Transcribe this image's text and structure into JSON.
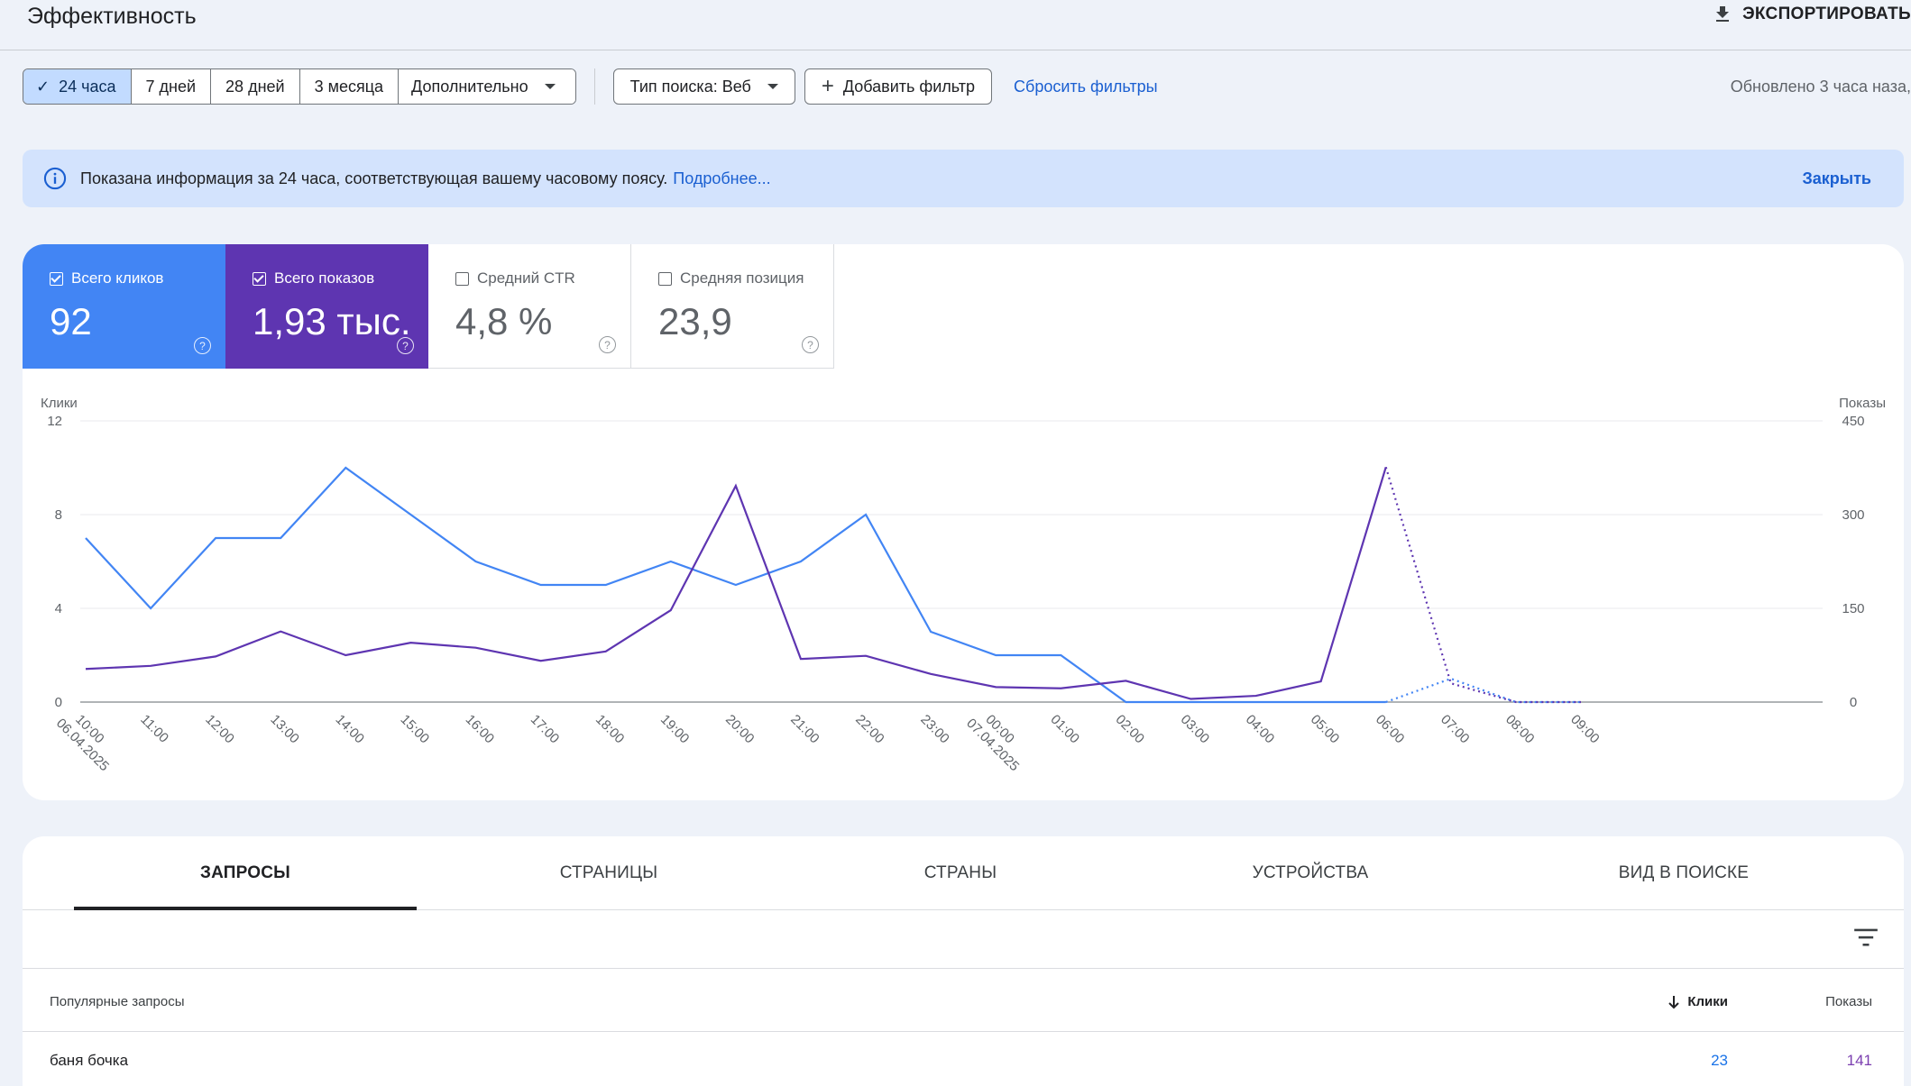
{
  "header": {
    "title": "Эффективность",
    "export_label": "ЭКСПОРТИРОВАТЬ"
  },
  "filters": {
    "ranges": [
      {
        "label": "24 часа",
        "active": true
      },
      {
        "label": "7 дней",
        "active": false
      },
      {
        "label": "28 дней",
        "active": false
      },
      {
        "label": "3 месяца",
        "active": false
      },
      {
        "label": "Дополнительно",
        "active": false
      }
    ],
    "search_type": "Тип поиска: Веб",
    "add_filter": "Добавить фильтр",
    "reset": "Сбросить фильтры",
    "updated": "Обновлено 3 часа наза,"
  },
  "banner": {
    "text": "Показана информация за 24 часа, соответствующая вашему часовому поясу.",
    "link": "Подробнее...",
    "close": "Закрыть"
  },
  "metrics": [
    {
      "label": "Всего кликов",
      "value": "92",
      "checked": true
    },
    {
      "label": "Всего показов",
      "value": "1,93 тыс.",
      "checked": true
    },
    {
      "label": "Средний CTR",
      "value": "4,8 %",
      "checked": false
    },
    {
      "label": "Средняя позиция",
      "value": "23,9",
      "checked": false
    }
  ],
  "colors": {
    "clicks": "#4285f4",
    "impressions": "#5e35b1",
    "accent": "#1a5fd1"
  },
  "chart_data": {
    "type": "line",
    "y_left_label": "Клики",
    "y_right_label": "Показы",
    "y_left_ticks": [
      "0",
      "4",
      "8",
      "12"
    ],
    "y_right_ticks": [
      "0",
      "150",
      "300",
      "450"
    ],
    "y_left_lim": [
      0,
      12
    ],
    "y_right_lim": [
      0,
      450
    ],
    "x": [
      "10:00 06.04.2025",
      "11:00",
      "12:00",
      "13:00",
      "14:00",
      "15:00",
      "16:00",
      "17:00",
      "18:00",
      "19:00",
      "20:00",
      "21:00",
      "22:00",
      "23:00",
      "00:00 07.04.2025",
      "01:00",
      "02:00",
      "03:00",
      "04:00",
      "05:00",
      "06:00",
      "07:00",
      "08:00",
      "09:00"
    ],
    "grid": true,
    "series": [
      {
        "name": "Клики",
        "axis": "left",
        "values": [
          7,
          4,
          7,
          7,
          10,
          8,
          6,
          5,
          5,
          6,
          5,
          6,
          8,
          3,
          2,
          2,
          0,
          0,
          0,
          0,
          0,
          1,
          0,
          0
        ],
        "dotted_from_index": 20
      },
      {
        "name": "Показы",
        "axis": "right",
        "values": [
          53,
          58,
          73,
          113,
          75,
          95,
          87,
          66,
          81,
          147,
          346,
          69,
          74,
          45,
          24,
          22,
          34,
          5,
          10,
          33,
          376,
          30,
          0,
          0
        ],
        "dotted_from_index": 20
      }
    ]
  },
  "tabs": [
    "ЗАПРОСЫ",
    "СТРАНИЦЫ",
    "СТРАНЫ",
    "УСТРОЙСТВА",
    "ВИД В ПОИСКЕ"
  ],
  "table": {
    "col_query": "Популярные запросы",
    "col_clicks": "Клики",
    "col_impressions": "Показы",
    "rows": [
      {
        "query": "баня бочка",
        "clicks": "23",
        "impressions": "141"
      }
    ]
  }
}
